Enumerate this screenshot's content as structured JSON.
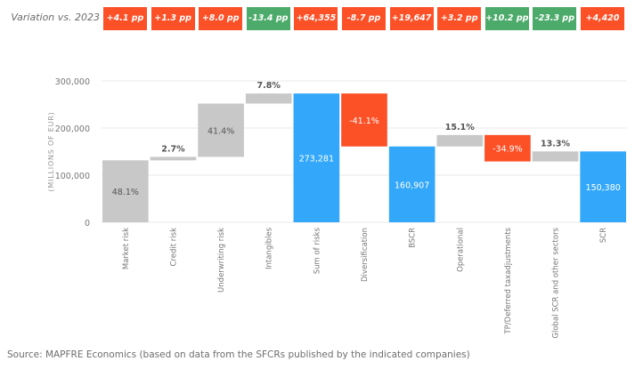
{
  "variation": {
    "label": "Variation vs. 2023",
    "items": [
      {
        "text": "+4.1 pp",
        "status": "up"
      },
      {
        "text": "+1.3 pp",
        "status": "up"
      },
      {
        "text": "+8.0 pp",
        "status": "up"
      },
      {
        "text": "-13.4 pp",
        "status": "down"
      },
      {
        "text": "+64,355",
        "status": "up"
      },
      {
        "text": "-8.7 pp",
        "status": "up"
      },
      {
        "text": "+19,647",
        "status": "up"
      },
      {
        "text": "+3.2 pp",
        "status": "up"
      },
      {
        "text": "+10.2 pp",
        "status": "down"
      },
      {
        "text": "-23.3 pp",
        "status": "down"
      },
      {
        "text": "+4,420",
        "status": "up"
      }
    ]
  },
  "colors": {
    "up": "#fc5027",
    "down": "#4caa6a",
    "increase": "#c8c8c8",
    "decrease": "#fc5027",
    "total": "#33a8fa",
    "grid": "#e8e8e8",
    "axis_text": "#777777",
    "label_dark": "#555555",
    "label_light": "#ffffff"
  },
  "chart_data": {
    "type": "bar",
    "subtype": "waterfall",
    "title": "",
    "xlabel": "",
    "ylabel": "(MILLIONS OF EUR)",
    "ylim": [
      0,
      300000
    ],
    "yticks": [
      0,
      100000,
      200000,
      300000
    ],
    "ytick_labels": [
      "0",
      "100,000",
      "200,000",
      "300,000"
    ],
    "grid": true,
    "categories": [
      "Market risk",
      "Credit risk",
      "Underwriting risk",
      "Intangibles",
      "Sum of risks",
      "Diversification",
      "BSCR",
      "Operational",
      "TP/Deferred taxadjustments",
      "Global SCR and other sectors",
      "SCR"
    ],
    "bars": [
      {
        "kind": "increase",
        "start": 0,
        "end": 131448,
        "label": "48.1%",
        "label_pos": "inside"
      },
      {
        "kind": "increase",
        "start": 131448,
        "end": 138827,
        "label": "2.7%",
        "label_pos": "above"
      },
      {
        "kind": "increase",
        "start": 138827,
        "end": 251965,
        "label": "41.4%",
        "label_pos": "inside"
      },
      {
        "kind": "increase",
        "start": 251965,
        "end": 273281,
        "label": "7.8%",
        "label_pos": "above"
      },
      {
        "kind": "total",
        "start": 0,
        "end": 273281,
        "label": "273,281",
        "label_pos": "inside"
      },
      {
        "kind": "decrease",
        "start": 273281,
        "end": 160907,
        "label": "-41.1%",
        "label_pos": "inside"
      },
      {
        "kind": "total",
        "start": 0,
        "end": 160907,
        "label": "160,907",
        "label_pos": "inside"
      },
      {
        "kind": "increase",
        "start": 160907,
        "end": 185204,
        "label": "15.1%",
        "label_pos": "above"
      },
      {
        "kind": "decrease",
        "start": 185204,
        "end": 129047,
        "label": "-34.9%",
        "label_pos": "inside"
      },
      {
        "kind": "increase",
        "start": 129047,
        "end": 150380,
        "label": "13.3%",
        "label_pos": "above"
      },
      {
        "kind": "total",
        "start": 0,
        "end": 150380,
        "label": "150,380",
        "label_pos": "inside"
      }
    ]
  },
  "source": "Source: MAPFRE Economics (based on data from the SFCRs published by the indicated companies)"
}
